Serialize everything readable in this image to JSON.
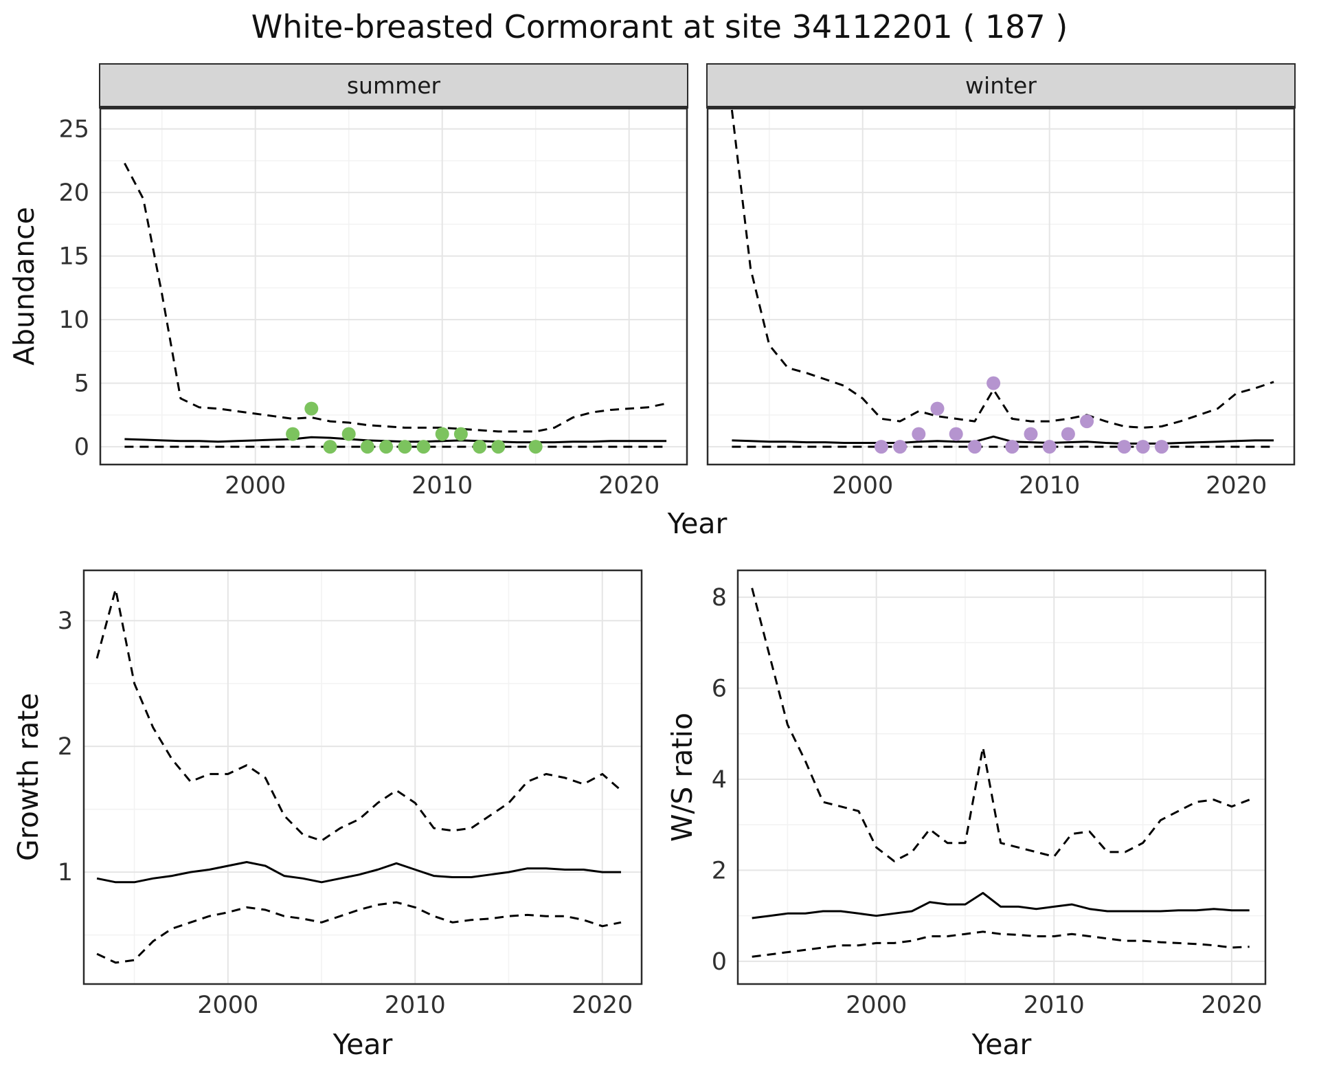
{
  "title": "White-breasted Cormorant at site 34112201 ( 187 )",
  "axes": {
    "x_label": "Year",
    "y_abundance": "Abundance",
    "y_growth": "Growth rate",
    "y_ws": "W/S ratio"
  },
  "colors": {
    "summer_points": "#7cc35e",
    "winter_points": "#b594cf",
    "line": "#000000",
    "strip_bg": "#d6d6d6",
    "grid_major": "#e5e5e5",
    "grid_minor": "#f2f2f2",
    "panel_border": "#2b2b2b",
    "tick_text": "#303030"
  },
  "chart_data": [
    {
      "id": "abundance-summer",
      "type": "line",
      "facet_label": "summer",
      "xlabel": "Year",
      "ylabel": "Abundance",
      "xlim": [
        1991.7,
        2023.1
      ],
      "ylim": [
        -1.4,
        26.6
      ],
      "xticks": [
        2000,
        2010,
        2020
      ],
      "yticks": [
        0,
        5,
        10,
        15,
        20,
        25
      ],
      "xticks_minor": [
        1995,
        2005,
        2015
      ],
      "yticks_minor": [
        2.5,
        7.5,
        12.5,
        17.5,
        22.5
      ],
      "grid": true,
      "legend": "none",
      "years": [
        1993,
        1994,
        1995,
        1996,
        1997,
        1998,
        1999,
        2000,
        2001,
        2002,
        2003,
        2004,
        2005,
        2006,
        2007,
        2008,
        2009,
        2010,
        2011,
        2012,
        2013,
        2014,
        2015,
        2016,
        2017,
        2018,
        2019,
        2020,
        2021,
        2022
      ],
      "series": [
        {
          "name": "upper-ci",
          "type": "line",
          "dashed": true,
          "values": [
            22.3,
            19.5,
            12.0,
            3.8,
            3.1,
            3.0,
            2.8,
            2.6,
            2.4,
            2.2,
            2.3,
            2.0,
            1.9,
            1.7,
            1.6,
            1.5,
            1.5,
            1.5,
            1.4,
            1.3,
            1.2,
            1.2,
            1.2,
            1.5,
            2.3,
            2.7,
            2.9,
            3.0,
            3.1,
            3.4
          ]
        },
        {
          "name": "mean",
          "type": "line",
          "dashed": false,
          "values": [
            0.6,
            0.55,
            0.5,
            0.45,
            0.45,
            0.4,
            0.45,
            0.5,
            0.55,
            0.6,
            0.75,
            0.7,
            0.6,
            0.5,
            0.45,
            0.4,
            0.4,
            0.45,
            0.5,
            0.45,
            0.4,
            0.35,
            0.35,
            0.35,
            0.4,
            0.4,
            0.45,
            0.45,
            0.45,
            0.45
          ]
        },
        {
          "name": "lower-ci",
          "type": "line",
          "dashed": true,
          "values": [
            0,
            0,
            0,
            0,
            0,
            0,
            0,
            0,
            0,
            0,
            0,
            0,
            0,
            0,
            0,
            0,
            0,
            0,
            0,
            0,
            0,
            0,
            0,
            0,
            0,
            0,
            0,
            0,
            0,
            0
          ]
        },
        {
          "name": "observations",
          "type": "points",
          "color": "#7cc35e",
          "x": [
            2002,
            2003,
            2004,
            2005,
            2006,
            2007,
            2008,
            2009,
            2010,
            2011,
            2012,
            2013,
            2015
          ],
          "y": [
            1,
            3,
            0,
            1,
            0,
            0,
            0,
            0,
            1,
            1,
            0,
            0,
            0
          ]
        }
      ]
    },
    {
      "id": "abundance-winter",
      "type": "line",
      "facet_label": "winter",
      "xlabel": "Year",
      "ylabel": "Abundance",
      "xlim": [
        1991.7,
        2023.1
      ],
      "ylim": [
        -1.4,
        26.6
      ],
      "xticks": [
        2000,
        2010,
        2020
      ],
      "yticks": [
        0,
        5,
        10,
        15,
        20,
        25
      ],
      "xticks_minor": [
        1995,
        2005,
        2015
      ],
      "yticks_minor": [
        2.5,
        7.5,
        12.5,
        17.5,
        22.5
      ],
      "grid": true,
      "legend": "none",
      "years": [
        1993,
        1994,
        1995,
        1996,
        1997,
        1998,
        1999,
        2000,
        2001,
        2002,
        2003,
        2004,
        2005,
        2006,
        2007,
        2008,
        2009,
        2010,
        2011,
        2012,
        2013,
        2014,
        2015,
        2016,
        2017,
        2018,
        2019,
        2020,
        2021,
        2022
      ],
      "series": [
        {
          "name": "upper-ci",
          "type": "line",
          "dashed": true,
          "values": [
            26.5,
            14.0,
            8.0,
            6.2,
            5.8,
            5.3,
            4.8,
            3.8,
            2.2,
            2.0,
            2.8,
            2.4,
            2.2,
            2.0,
            4.5,
            2.2,
            2.0,
            2.0,
            2.2,
            2.5,
            2.0,
            1.6,
            1.5,
            1.6,
            2.0,
            2.5,
            3.0,
            4.2,
            4.6,
            5.1
          ]
        },
        {
          "name": "mean",
          "type": "line",
          "dashed": false,
          "values": [
            0.5,
            0.45,
            0.4,
            0.4,
            0.35,
            0.35,
            0.3,
            0.3,
            0.3,
            0.3,
            0.4,
            0.45,
            0.4,
            0.4,
            0.8,
            0.4,
            0.35,
            0.3,
            0.35,
            0.4,
            0.3,
            0.25,
            0.25,
            0.25,
            0.3,
            0.35,
            0.4,
            0.45,
            0.5,
            0.5
          ]
        },
        {
          "name": "lower-ci",
          "type": "line",
          "dashed": true,
          "values": [
            0,
            0,
            0,
            0,
            0,
            0,
            0,
            0,
            0,
            0,
            0,
            0,
            0,
            0,
            0,
            0,
            0,
            0,
            0,
            0,
            0,
            0,
            0,
            0,
            0,
            0,
            0,
            0,
            0,
            0
          ]
        },
        {
          "name": "observations",
          "type": "points",
          "color": "#b594cf",
          "x": [
            2001,
            2002,
            2003,
            2004,
            2005,
            2006,
            2007,
            2008,
            2009,
            2010,
            2011,
            2012,
            2014,
            2015,
            2016
          ],
          "y": [
            0,
            0,
            1,
            3,
            1,
            0,
            5,
            0,
            1,
            0,
            1,
            2,
            0,
            0,
            0
          ]
        }
      ]
    },
    {
      "id": "growth-rate",
      "type": "line",
      "facet_label": "",
      "xlabel": "Year",
      "ylabel": "Growth rate",
      "xlim": [
        1992.3,
        2022.1
      ],
      "ylim": [
        0.11,
        3.4
      ],
      "xticks": [
        2000,
        2010,
        2020
      ],
      "yticks": [
        1,
        2,
        3
      ],
      "xticks_minor": [
        1995,
        2005,
        2015
      ],
      "yticks_minor": [
        0.5,
        1.5,
        2.5
      ],
      "grid": true,
      "legend": "none",
      "years": [
        1993,
        1994,
        1995,
        1996,
        1997,
        1998,
        1999,
        2000,
        2001,
        2002,
        2003,
        2004,
        2005,
        2006,
        2007,
        2008,
        2009,
        2010,
        2011,
        2012,
        2013,
        2014,
        2015,
        2016,
        2017,
        2018,
        2019,
        2020,
        2021
      ],
      "series": [
        {
          "name": "upper-ci",
          "type": "line",
          "dashed": true,
          "values": [
            2.7,
            3.25,
            2.5,
            2.15,
            1.9,
            1.72,
            1.78,
            1.78,
            1.85,
            1.75,
            1.45,
            1.3,
            1.25,
            1.35,
            1.42,
            1.55,
            1.65,
            1.55,
            1.35,
            1.33,
            1.35,
            1.45,
            1.55,
            1.72,
            1.78,
            1.75,
            1.7,
            1.78,
            1.65
          ]
        },
        {
          "name": "mean",
          "type": "line",
          "dashed": false,
          "values": [
            0.95,
            0.92,
            0.92,
            0.95,
            0.97,
            1.0,
            1.02,
            1.05,
            1.08,
            1.05,
            0.97,
            0.95,
            0.92,
            0.95,
            0.98,
            1.02,
            1.07,
            1.02,
            0.97,
            0.96,
            0.96,
            0.98,
            1.0,
            1.03,
            1.03,
            1.02,
            1.02,
            1.0,
            1.0
          ]
        },
        {
          "name": "lower-ci",
          "type": "line",
          "dashed": true,
          "values": [
            0.35,
            0.28,
            0.3,
            0.45,
            0.55,
            0.6,
            0.65,
            0.68,
            0.72,
            0.7,
            0.65,
            0.63,
            0.6,
            0.65,
            0.7,
            0.74,
            0.76,
            0.72,
            0.65,
            0.6,
            0.62,
            0.63,
            0.65,
            0.66,
            0.65,
            0.65,
            0.62,
            0.57,
            0.6
          ]
        }
      ]
    },
    {
      "id": "ws-ratio",
      "type": "line",
      "facet_label": "",
      "xlabel": "Year",
      "ylabel": "W/S ratio",
      "xlim": [
        1992.2,
        2021.9
      ],
      "ylim": [
        -0.5,
        8.59
      ],
      "xticks": [
        2000,
        2010,
        2020
      ],
      "yticks": [
        0,
        2,
        4,
        6,
        8
      ],
      "xticks_minor": [
        1995,
        2005,
        2015
      ],
      "yticks_minor": [
        1,
        3,
        5,
        7
      ],
      "grid": true,
      "legend": "none",
      "years": [
        1993,
        1994,
        1995,
        1996,
        1997,
        1998,
        1999,
        2000,
        2001,
        2002,
        2003,
        2004,
        2005,
        2006,
        2007,
        2008,
        2009,
        2010,
        2011,
        2012,
        2013,
        2014,
        2015,
        2016,
        2017,
        2018,
        2019,
        2020,
        2021
      ],
      "series": [
        {
          "name": "upper-ci",
          "type": "line",
          "dashed": true,
          "values": [
            8.2,
            6.7,
            5.2,
            4.4,
            3.5,
            3.4,
            3.3,
            2.5,
            2.2,
            2.4,
            2.9,
            2.6,
            2.6,
            4.7,
            2.6,
            2.5,
            2.4,
            2.3,
            2.8,
            2.85,
            2.4,
            2.4,
            2.6,
            3.1,
            3.3,
            3.5,
            3.55,
            3.4,
            3.55
          ]
        },
        {
          "name": "mean",
          "type": "line",
          "dashed": false,
          "values": [
            0.95,
            1.0,
            1.05,
            1.05,
            1.1,
            1.1,
            1.05,
            1.0,
            1.05,
            1.1,
            1.3,
            1.25,
            1.25,
            1.5,
            1.2,
            1.2,
            1.15,
            1.2,
            1.25,
            1.15,
            1.1,
            1.1,
            1.1,
            1.1,
            1.12,
            1.12,
            1.15,
            1.12,
            1.12
          ]
        },
        {
          "name": "lower-ci",
          "type": "line",
          "dashed": true,
          "values": [
            0.1,
            0.15,
            0.2,
            0.25,
            0.3,
            0.35,
            0.35,
            0.4,
            0.4,
            0.45,
            0.55,
            0.55,
            0.6,
            0.65,
            0.6,
            0.58,
            0.55,
            0.55,
            0.6,
            0.55,
            0.5,
            0.45,
            0.45,
            0.42,
            0.4,
            0.38,
            0.35,
            0.3,
            0.32
          ]
        }
      ]
    }
  ]
}
